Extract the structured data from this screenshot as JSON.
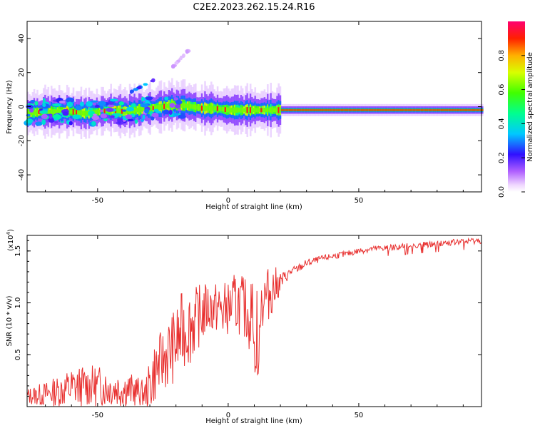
{
  "figure_title": "C2E2.2023.262.15.24.R16",
  "colors": {
    "snr_line": "#e8302f",
    "axis": "#000000",
    "background": "#ffffff",
    "spectrogram_floor": "#ffffff"
  },
  "chart_data": [
    {
      "type": "heatmap",
      "title": "C2E2.2023.262.15.24.R16",
      "xlabel": "Height of straight line (km)",
      "ylabel": "Frequency (Hz)",
      "xlim": [
        -77,
        97
      ],
      "ylim": [
        -50,
        50
      ],
      "x_ticks": [
        -50,
        0,
        50
      ],
      "y_ticks": [
        -40,
        -20,
        0,
        20,
        40
      ],
      "grid": false,
      "colormap": "rainbow",
      "colorbar": {
        "label": "Normalized spectral amplitude",
        "range": [
          0,
          1
        ],
        "ticks": [
          "0.0",
          "0.2",
          "0.4",
          "0.6",
          "0.8"
        ],
        "stops": [
          {
            "value": 0.0,
            "color": "#ffffff"
          },
          {
            "value": 0.04,
            "color": "#f0d8ff"
          },
          {
            "value": 0.12,
            "color": "#b060ff"
          },
          {
            "value": 0.22,
            "color": "#3010ff"
          },
          {
            "value": 0.34,
            "color": "#00c8ff"
          },
          {
            "value": 0.46,
            "color": "#00ff90"
          },
          {
            "value": 0.58,
            "color": "#40ff00"
          },
          {
            "value": 0.7,
            "color": "#d8ff00"
          },
          {
            "value": 0.8,
            "color": "#ffb000"
          },
          {
            "value": 0.9,
            "color": "#ff2000"
          },
          {
            "value": 1.0,
            "color": "#ff0070"
          }
        ]
      },
      "ridge": {
        "description_points_km_hz": [
          [
            -77,
            -4
          ],
          [
            -72,
            -3
          ],
          [
            -66,
            -3
          ],
          [
            -60,
            -3
          ],
          [
            -55,
            -4
          ],
          [
            -50,
            -3
          ],
          [
            -45,
            -2
          ],
          [
            -40,
            -3
          ],
          [
            -35,
            -2
          ],
          [
            -30,
            -1
          ],
          [
            -25,
            0
          ],
          [
            -22,
            1
          ],
          [
            -18,
            1
          ],
          [
            -14,
            0
          ],
          [
            -10,
            -1
          ],
          [
            -5,
            -1
          ],
          [
            0,
            -2
          ],
          [
            5,
            -2
          ],
          [
            10,
            -2
          ],
          [
            20,
            -2
          ],
          [
            30,
            -2
          ],
          [
            50,
            -2
          ],
          [
            70,
            -2
          ],
          [
            97,
            -2
          ]
        ]
      },
      "features": [
        {
          "x": [
            -38,
            -28
          ],
          "y": [
            8,
            16
          ],
          "strength": 0.35
        },
        {
          "x": [
            -22,
            -14
          ],
          "y": [
            22,
            35
          ],
          "strength": 0.1
        }
      ]
    },
    {
      "type": "line",
      "xlabel": "Height of straight line (km)",
      "ylabel": "SNR (10 * v/v)",
      "y_scale_label": "(x10",
      "y_scale_exponent": "4",
      "y_scale_suffix": ")",
      "xlim": [
        -77,
        97
      ],
      "ylim": [
        0,
        1.65
      ],
      "x_ticks": [
        -50,
        0,
        50
      ],
      "y_ticks": [
        0.5,
        1.0,
        1.5
      ],
      "y_tick_labels": [
        "0.5",
        "1.0",
        "1.5"
      ],
      "grid": false,
      "series": [
        {
          "color": "#e8302f",
          "envelope_x": [
            -77,
            -70,
            -65,
            -60,
            -55,
            -50,
            -45,
            -40,
            -35,
            -32,
            -30,
            -28,
            -25,
            -22,
            -20,
            -18,
            -16,
            -14,
            -12,
            -10,
            -8,
            -6,
            -4,
            -2,
            0,
            2,
            4,
            6,
            8,
            10,
            12,
            14,
            16,
            18,
            20,
            22,
            24,
            26,
            28,
            30,
            35,
            40,
            45,
            50,
            55,
            60,
            65,
            70,
            75,
            80,
            85,
            90,
            95,
            97
          ],
          "envelope_mid": [
            0.1,
            0.12,
            0.15,
            0.18,
            0.2,
            0.2,
            0.18,
            0.17,
            0.15,
            0.12,
            0.2,
            0.35,
            0.45,
            0.55,
            0.6,
            0.7,
            0.75,
            0.8,
            0.85,
            0.9,
            0.95,
            0.95,
            0.95,
            0.92,
            0.95,
            0.98,
            1.0,
            0.95,
            0.9,
            0.9,
            1.0,
            1.05,
            1.1,
            1.15,
            1.2,
            1.25,
            1.3,
            1.32,
            1.35,
            1.38,
            1.42,
            1.45,
            1.47,
            1.5,
            1.52,
            1.53,
            1.54,
            1.55,
            1.56,
            1.57,
            1.58,
            1.59,
            1.6,
            1.6
          ],
          "envelope_spread": [
            0.08,
            0.12,
            0.15,
            0.2,
            0.2,
            0.2,
            0.18,
            0.18,
            0.15,
            0.12,
            0.25,
            0.3,
            0.3,
            0.35,
            0.35,
            0.4,
            0.35,
            0.4,
            0.3,
            0.3,
            0.25,
            0.25,
            0.25,
            0.3,
            0.25,
            0.3,
            0.3,
            0.3,
            0.35,
            0.35,
            0.3,
            0.3,
            0.25,
            0.2,
            0.1,
            0.06,
            0.05,
            0.04,
            0.04,
            0.04,
            0.03,
            0.03,
            0.03,
            0.03,
            0.03,
            0.03,
            0.03,
            0.03,
            0.03,
            0.03,
            0.03,
            0.03,
            0.03,
            0.03
          ]
        }
      ]
    }
  ]
}
